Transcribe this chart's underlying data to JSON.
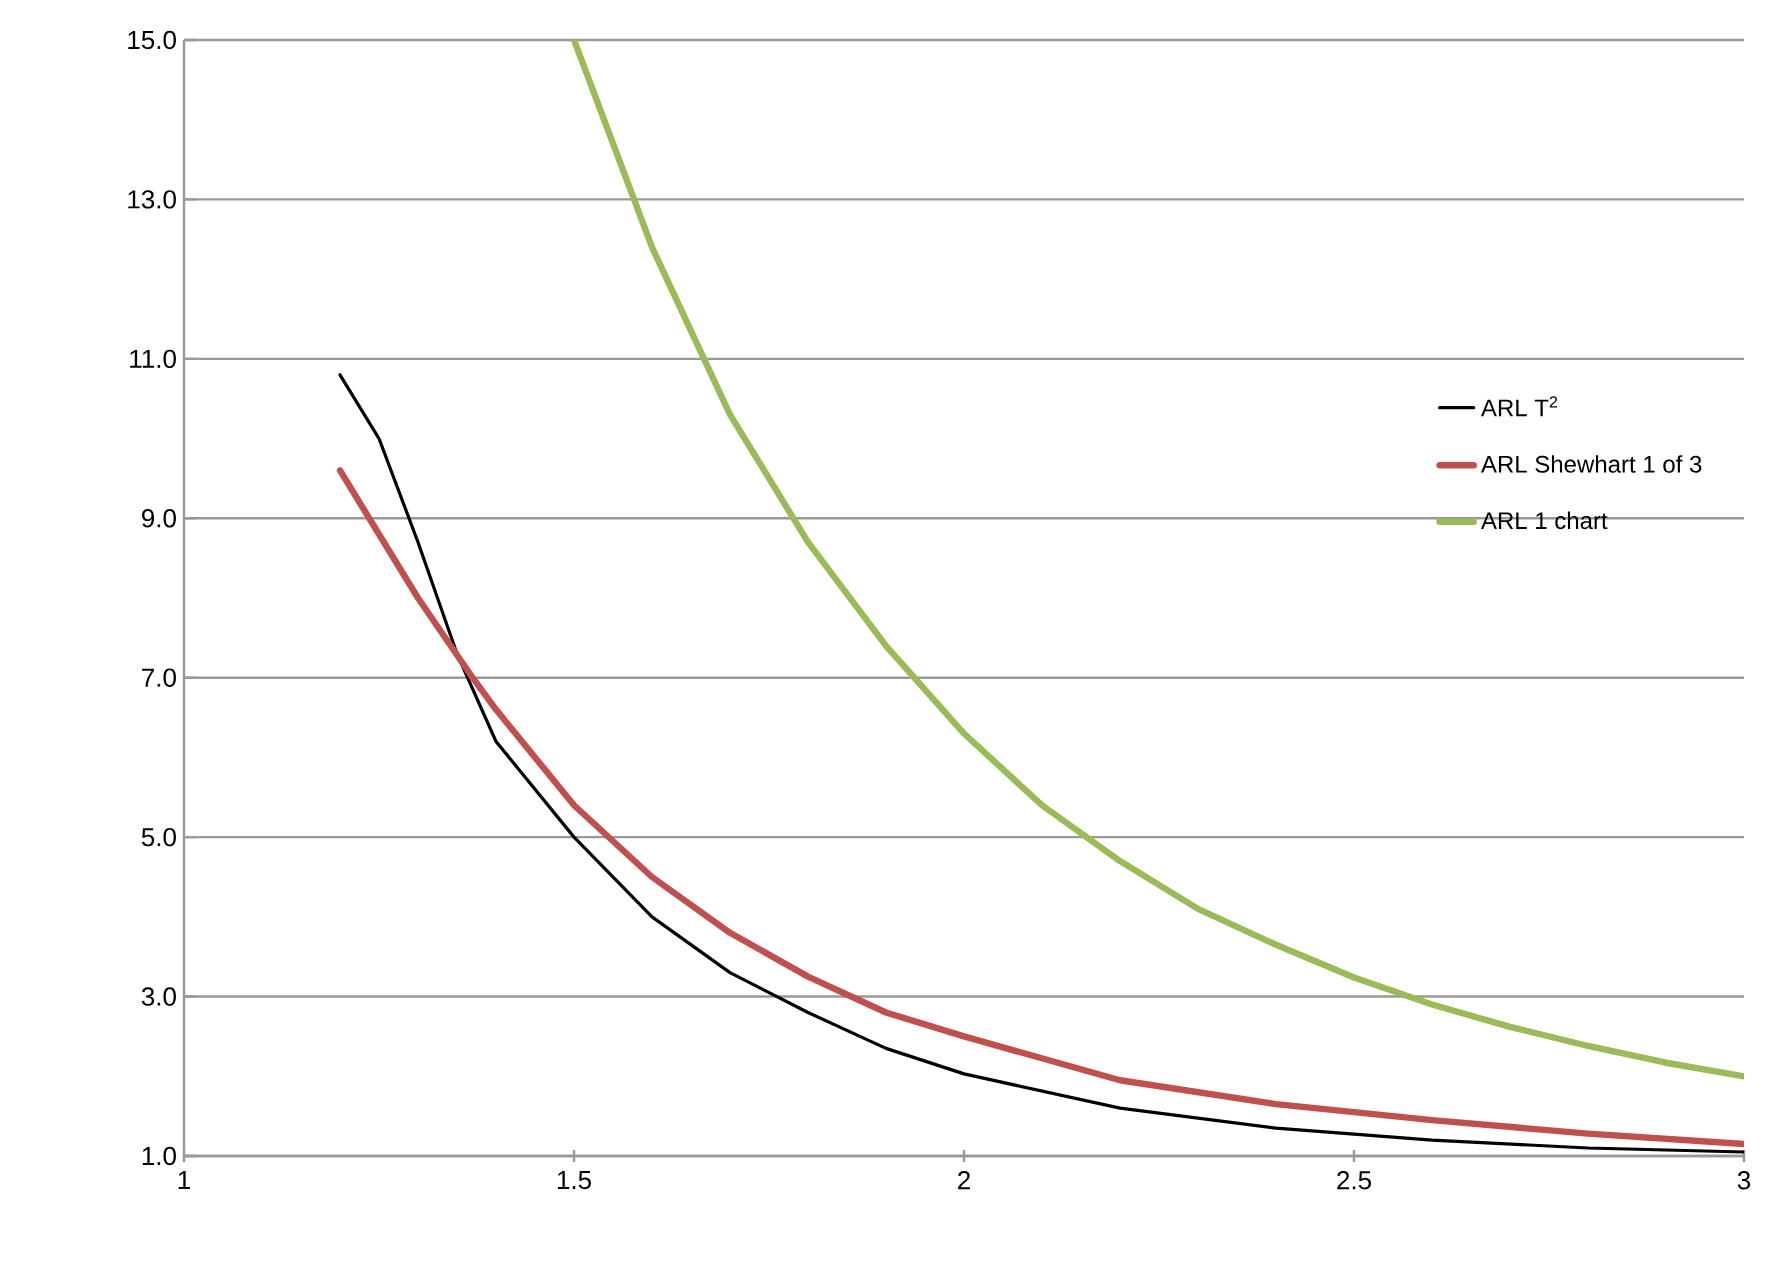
{
  "chart_data": {
    "type": "line",
    "xlim": [
      1,
      3
    ],
    "ylim": [
      1,
      15
    ],
    "xticks": [
      1,
      1.5,
      2,
      2.5,
      3
    ],
    "yticks": [
      {
        "value": 1,
        "label": "1.0"
      },
      {
        "value": 3,
        "label": "3.0"
      },
      {
        "value": 5,
        "label": "5.0"
      },
      {
        "value": 7,
        "label": "7.0"
      },
      {
        "value": 9,
        "label": "9.0"
      },
      {
        "value": 11,
        "label": "11.0"
      },
      {
        "value": 13,
        "label": "13.0"
      },
      {
        "value": 15,
        "label": "15.0"
      }
    ],
    "grid": "y",
    "legend": "right",
    "marker": "none",
    "line_style": "solid",
    "series": [
      {
        "name": "ARL T$^{2}$",
        "color": "#000000",
        "x": [
          1.2,
          1.25,
          1.3,
          1.35,
          1.4,
          1.5,
          1.6,
          1.7,
          1.8,
          1.9,
          2.0,
          2.2,
          2.4,
          2.6,
          2.8,
          3.0
        ],
        "values": [
          10.8,
          10.0,
          8.7,
          7.3,
          6.2,
          5.0,
          4.0,
          3.3,
          2.8,
          2.35,
          2.03,
          1.6,
          1.35,
          1.2,
          1.1,
          1.05
        ]
      },
      {
        "name": "ARL Shewhart 1 of 3",
        "color": "#c0504d",
        "x": [
          1.2,
          1.3,
          1.37,
          1.4,
          1.5,
          1.6,
          1.7,
          1.8,
          1.9,
          2.0,
          2.2,
          2.4,
          2.6,
          2.8,
          3.0
        ],
        "values": [
          9.6,
          8.0,
          7.0,
          6.6,
          5.4,
          4.5,
          3.8,
          3.25,
          2.8,
          2.5,
          1.95,
          1.65,
          1.45,
          1.28,
          1.15
        ]
      },
      {
        "name": "ARL 1 chart",
        "color": "#9bbb59",
        "x": [
          1.5,
          1.6,
          1.7,
          1.8,
          1.9,
          2.0,
          2.1,
          2.2,
          2.3,
          2.4,
          2.5,
          2.6,
          2.7,
          2.8,
          2.9,
          3.0
        ],
        "values": [
          15.0,
          12.4,
          10.3,
          8.7,
          7.4,
          6.3,
          5.4,
          4.7,
          4.1,
          3.65,
          3.24,
          2.9,
          2.62,
          2.38,
          2.17,
          2.0
        ]
      }
    ]
  }
}
